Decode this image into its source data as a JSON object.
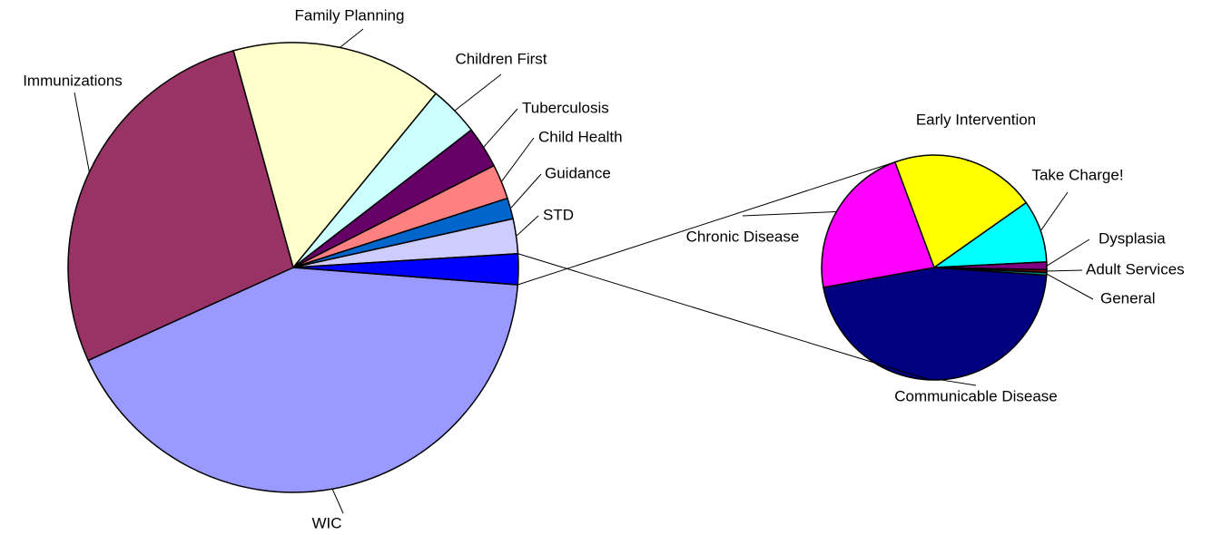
{
  "chart_data": [
    {
      "type": "pie",
      "categories": [
        "WIC",
        "Immunizations",
        "Family Planning",
        "Children First",
        "Tuberculosis",
        "Child Health",
        "Guidance",
        "STD",
        null
      ],
      "values": [
        42,
        27.5,
        15.2,
        3.6,
        3,
        2.5,
        1.5,
        2.5,
        2.2
      ],
      "colors": [
        "#9999ff",
        "#993366",
        "#ffffcc",
        "#ccffff",
        "#660066",
        "#ff8080",
        "#0066cc",
        "#ccccff",
        "#0000ff"
      ]
    },
    {
      "type": "pie",
      "categories": [
        "Communicable Disease",
        "Chronic Disease",
        "Early Intervention",
        "Take Charge!",
        "Dysplasia",
        "Adult Services",
        "General"
      ],
      "values": [
        46.1,
        22.2,
        20.9,
        9,
        1.1,
        0.4,
        0.4
      ],
      "colors": [
        "#000080",
        "#ff00ff",
        "#ffff00",
        "#00ffff",
        "#800080",
        "#800000",
        "#008080"
      ]
    }
  ]
}
